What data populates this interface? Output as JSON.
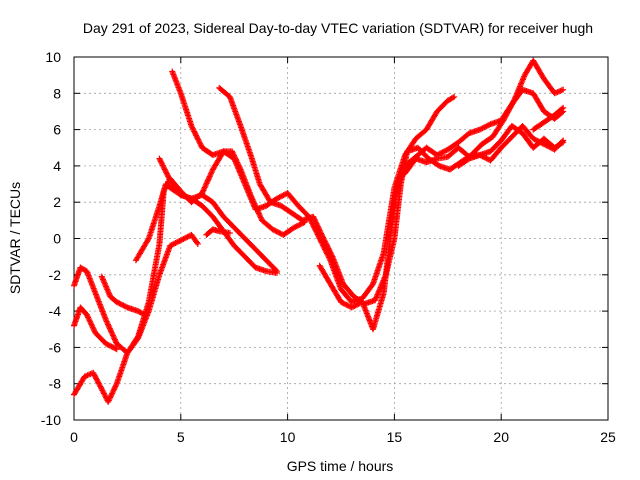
{
  "chart_data": {
    "type": "scatter",
    "title": "Day 291 of 2023, Sidereal Day-to-day VTEC variation (SDTVAR) for receiver hugh",
    "xlabel": "GPS time / hours",
    "ylabel": "SDTVAR / TECUs",
    "xlim": [
      0,
      25
    ],
    "ylim": [
      -10,
      10
    ],
    "xticks": [
      0,
      5,
      10,
      15,
      20,
      25
    ],
    "yticks": [
      -10,
      -8,
      -6,
      -4,
      -2,
      0,
      2,
      4,
      6,
      8,
      10
    ],
    "xtick_labels": [
      "0",
      "5",
      "10",
      "15",
      "20",
      "25"
    ],
    "ytick_labels": [
      "-10",
      "-8",
      "-6",
      "-4",
      "-2",
      "0",
      "2",
      "4",
      "6",
      "8",
      "10"
    ],
    "grid": true,
    "marker": "plus",
    "color": "#ff0000",
    "series": [
      {
        "points": [
          [
            0,
            -2.6
          ],
          [
            0.3,
            -1.6
          ],
          [
            0.6,
            -1.8
          ],
          [
            1.0,
            -3.0
          ],
          [
            1.5,
            -4.5
          ],
          [
            2.0,
            -5.8
          ],
          [
            2.5,
            -6.3
          ],
          [
            3.0,
            -5.5
          ],
          [
            3.5,
            -4.0
          ],
          [
            4.0,
            -2.0
          ],
          [
            4.5,
            -0.4
          ],
          [
            5.0,
            -0.1
          ],
          [
            5.5,
            0.2
          ],
          [
            5.8,
            -0.3
          ]
        ]
      },
      {
        "points": [
          [
            0,
            -4.8
          ],
          [
            0.3,
            -3.8
          ],
          [
            0.6,
            -4.2
          ],
          [
            1.0,
            -5.2
          ],
          [
            1.5,
            -5.8
          ],
          [
            2.0,
            -6.1
          ]
        ]
      },
      {
        "points": [
          [
            0,
            -8.6
          ],
          [
            0.5,
            -7.6
          ],
          [
            0.9,
            -7.4
          ],
          [
            1.3,
            -8.3
          ],
          [
            1.6,
            -9.0
          ],
          [
            2.0,
            -8.0
          ],
          [
            2.5,
            -6.3
          ],
          [
            3.0,
            -5.4
          ],
          [
            3.5,
            -3.5
          ],
          [
            4.0,
            -0.3
          ],
          [
            4.2,
            2.6
          ],
          [
            4.5,
            3.3
          ],
          [
            5.0,
            2.6
          ],
          [
            5.5,
            2.0
          ],
          [
            6.0,
            2.5
          ],
          [
            6.5,
            3.8
          ],
          [
            7.0,
            4.8
          ],
          [
            7.4,
            4.8
          ],
          [
            7.8,
            3.8
          ],
          [
            8.3,
            2.3
          ],
          [
            8.8,
            1.0
          ],
          [
            9.3,
            0.5
          ],
          [
            9.8,
            0.2
          ],
          [
            10.3,
            0.6
          ],
          [
            10.8,
            0.9
          ]
        ]
      },
      {
        "points": [
          [
            1.3,
            -2.1
          ],
          [
            1.7,
            -3.2
          ],
          [
            2.0,
            -3.5
          ],
          [
            2.5,
            -3.8
          ],
          [
            3.0,
            -4.0
          ],
          [
            3.3,
            -4.2
          ]
        ]
      },
      {
        "points": [
          [
            2.9,
            -1.2
          ],
          [
            3.5,
            0.0
          ],
          [
            4.0,
            1.8
          ],
          [
            4.3,
            3.0
          ],
          [
            4.5,
            2.8
          ],
          [
            5.0,
            2.4
          ],
          [
            5.5,
            2.2
          ],
          [
            6.0,
            1.8
          ],
          [
            6.5,
            1.2
          ],
          [
            7.0,
            0.4
          ],
          [
            7.5,
            -0.4
          ],
          [
            8.0,
            -1.0
          ],
          [
            8.5,
            -1.6
          ],
          [
            9.0,
            -1.8
          ],
          [
            9.5,
            -1.9
          ]
        ]
      },
      {
        "points": [
          [
            4.0,
            4.4
          ],
          [
            4.5,
            3.2
          ],
          [
            5.0,
            2.4
          ],
          [
            5.5,
            2.2
          ],
          [
            6.0,
            2.4
          ],
          [
            6.5,
            2.0
          ],
          [
            7.0,
            1.2
          ],
          [
            7.5,
            0.6
          ],
          [
            8.0,
            0.0
          ],
          [
            8.5,
            -0.6
          ],
          [
            9.0,
            -1.2
          ],
          [
            9.5,
            -1.8
          ]
        ]
      },
      {
        "points": [
          [
            6.2,
            0.2
          ],
          [
            6.5,
            0.5
          ],
          [
            6.8,
            0.4
          ],
          [
            7.3,
            0.3
          ]
        ]
      },
      {
        "points": [
          [
            4.6,
            9.2
          ],
          [
            5.0,
            8.0
          ],
          [
            5.5,
            6.2
          ],
          [
            6.0,
            5.0
          ],
          [
            6.5,
            4.6
          ],
          [
            7.0,
            4.8
          ],
          [
            7.5,
            4.4
          ],
          [
            8.0,
            3.0
          ],
          [
            8.5,
            1.6
          ],
          [
            9.0,
            1.8
          ],
          [
            9.5,
            2.2
          ],
          [
            10.0,
            2.5
          ],
          [
            10.5,
            1.8
          ],
          [
            11.0,
            1.2
          ],
          [
            11.5,
            0.0
          ],
          [
            12.0,
            -1.2
          ],
          [
            12.5,
            -2.8
          ],
          [
            13.0,
            -3.5
          ],
          [
            13.5,
            -3.3
          ],
          [
            14.0,
            -2.5
          ],
          [
            14.5,
            -0.8
          ],
          [
            15.0,
            2.8
          ],
          [
            15.5,
            4.6
          ],
          [
            16.0,
            5.5
          ],
          [
            16.5,
            6.0
          ],
          [
            17.0,
            7.0
          ],
          [
            17.5,
            7.6
          ],
          [
            17.8,
            7.8
          ]
        ]
      },
      {
        "points": [
          [
            6.8,
            8.3
          ],
          [
            7.3,
            7.8
          ],
          [
            7.8,
            6.2
          ],
          [
            8.3,
            4.5
          ],
          [
            8.7,
            3.0
          ],
          [
            9.2,
            2.0
          ],
          [
            9.7,
            1.8
          ],
          [
            10.2,
            1.4
          ],
          [
            10.7,
            1.0
          ],
          [
            11.2,
            1.2
          ],
          [
            11.6,
            0.2
          ],
          [
            12.1,
            -1.0
          ],
          [
            12.6,
            -2.5
          ],
          [
            13.1,
            -3.2
          ],
          [
            13.6,
            -3.6
          ],
          [
            14.1,
            -3.4
          ],
          [
            14.6,
            -2.0
          ],
          [
            15.0,
            0.0
          ],
          [
            15.3,
            3.0
          ],
          [
            15.6,
            4.8
          ],
          [
            16.1,
            5.0
          ],
          [
            16.6,
            4.4
          ],
          [
            17.1,
            4.0
          ],
          [
            17.6,
            3.8
          ],
          [
            18.1,
            4.2
          ],
          [
            18.6,
            4.6
          ],
          [
            19.1,
            5.2
          ],
          [
            19.6,
            5.6
          ],
          [
            20.1,
            6.5
          ],
          [
            20.6,
            7.6
          ],
          [
            21.1,
            9.0
          ],
          [
            21.5,
            9.8
          ],
          [
            22.0,
            8.8
          ],
          [
            22.5,
            8.0
          ],
          [
            22.9,
            8.2
          ]
        ]
      },
      {
        "points": [
          [
            11.5,
            -1.5
          ],
          [
            12.0,
            -2.5
          ],
          [
            12.5,
            -3.5
          ],
          [
            13.0,
            -3.8
          ],
          [
            13.5,
            -3.5
          ],
          [
            14.0,
            -5.0
          ],
          [
            14.5,
            -3.0
          ],
          [
            14.8,
            0.0
          ],
          [
            15.1,
            2.5
          ],
          [
            15.5,
            4.0
          ],
          [
            16.0,
            4.5
          ],
          [
            16.5,
            5.0
          ],
          [
            17.0,
            4.6
          ],
          [
            17.5,
            4.9
          ],
          [
            18.0,
            5.3
          ],
          [
            18.5,
            5.8
          ],
          [
            19.0,
            6.0
          ],
          [
            19.5,
            6.3
          ],
          [
            20.0,
            6.5
          ],
          [
            20.5,
            7.4
          ],
          [
            21.0,
            8.2
          ],
          [
            21.5,
            8.0
          ],
          [
            22.0,
            7.0
          ],
          [
            22.5,
            6.6
          ],
          [
            22.9,
            7.0
          ]
        ]
      },
      {
        "points": [
          [
            15.5,
            3.6
          ],
          [
            16.0,
            4.4
          ],
          [
            16.5,
            4.2
          ],
          [
            17.0,
            4.4
          ],
          [
            17.5,
            4.5
          ],
          [
            18.0,
            5.0
          ],
          [
            18.5,
            4.5
          ],
          [
            19.0,
            4.6
          ],
          [
            19.5,
            4.8
          ],
          [
            20.0,
            5.4
          ],
          [
            20.5,
            6.2
          ],
          [
            21.0,
            5.8
          ],
          [
            21.5,
            5.0
          ],
          [
            22.0,
            5.5
          ],
          [
            22.5,
            5.0
          ],
          [
            22.9,
            5.3
          ]
        ]
      },
      {
        "points": [
          [
            18.0,
            4.0
          ],
          [
            18.5,
            4.4
          ],
          [
            19.0,
            4.6
          ],
          [
            19.5,
            4.3
          ],
          [
            20.0,
            5.0
          ],
          [
            20.5,
            5.6
          ],
          [
            21.0,
            6.2
          ],
          [
            21.5,
            5.5
          ],
          [
            22.0,
            5.2
          ],
          [
            22.5,
            4.9
          ],
          [
            22.9,
            5.4
          ]
        ]
      },
      {
        "points": [
          [
            21.5,
            6.0
          ],
          [
            22.0,
            6.4
          ],
          [
            22.5,
            6.8
          ],
          [
            22.9,
            7.2
          ]
        ]
      }
    ]
  }
}
